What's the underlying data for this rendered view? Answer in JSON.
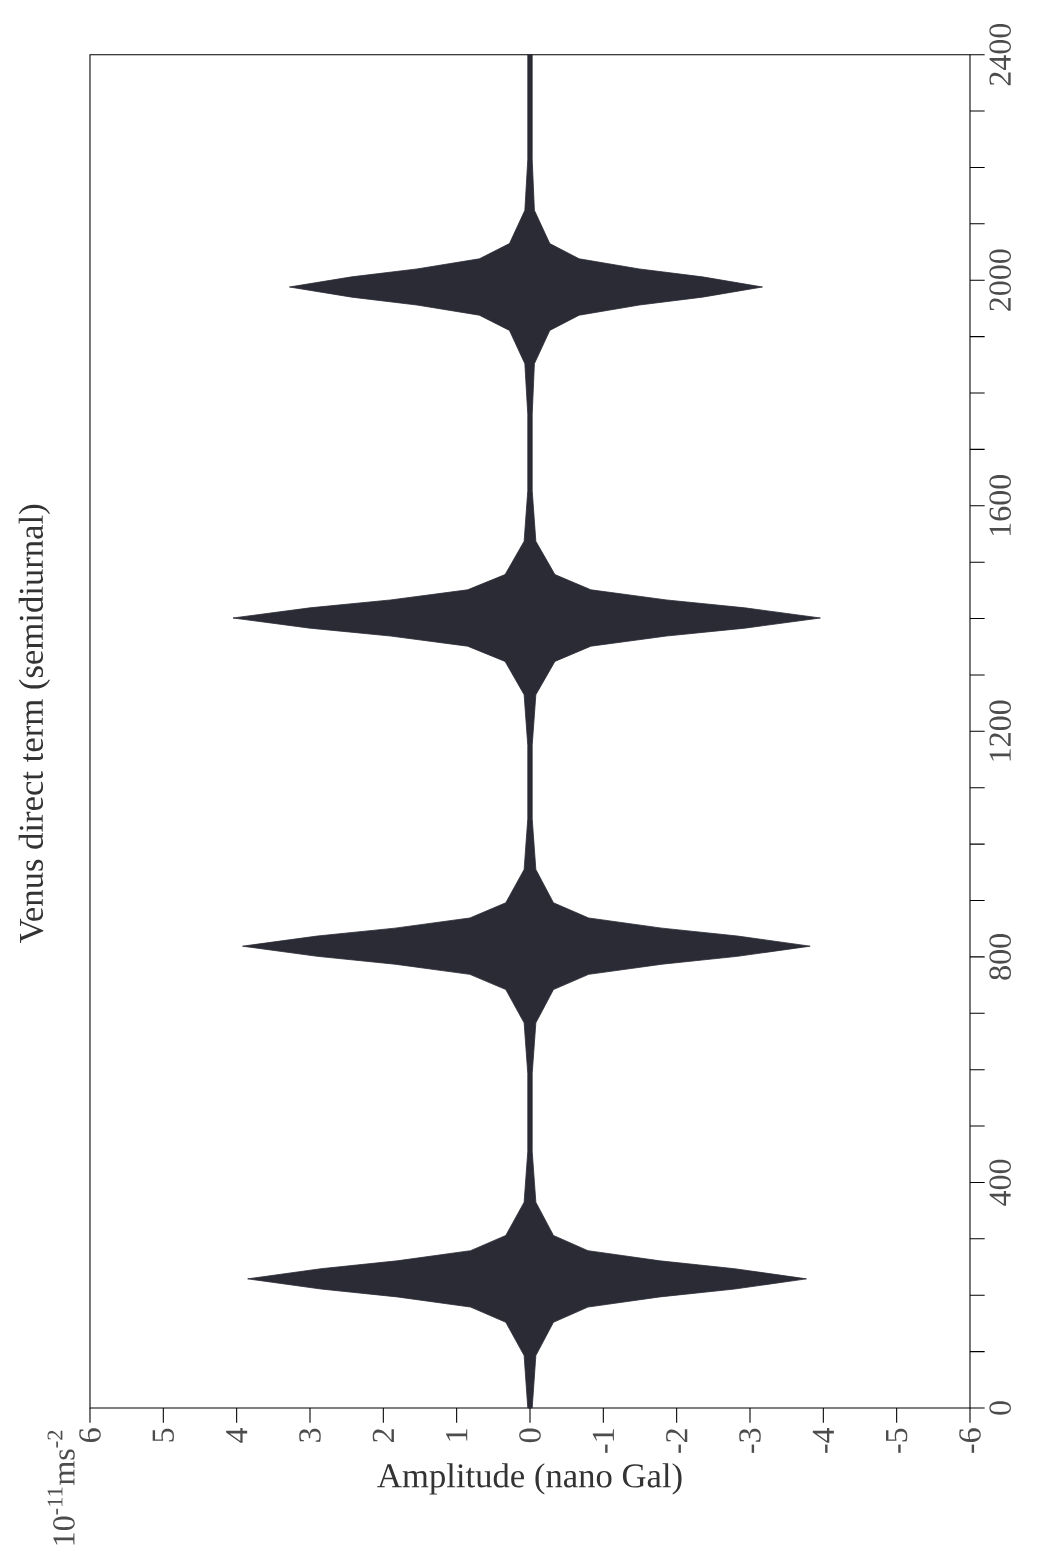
{
  "chart_data": {
    "type": "area",
    "orientation": "horizontal",
    "title": "Venus direct term (semidiurnal)",
    "xlabel": "Amplitude (nano Gal)",
    "annotations": [
      "10$^{-11}$ms$^{-2}$"
    ],
    "xlim": [
      6,
      -6
    ],
    "ylim": [
      0,
      2400
    ],
    "xticks": [
      -6,
      -5,
      -4,
      -3,
      -2,
      -1,
      0,
      1,
      2,
      3,
      4,
      5,
      6
    ],
    "yticks": [
      0,
      {
        "value": 100,
        "label": null
      },
      {
        "value": 200,
        "label": null
      },
      {
        "value": 300,
        "label": null
      },
      400,
      {
        "value": 500,
        "label": null
      },
      {
        "value": 600,
        "label": null
      },
      {
        "value": 700,
        "label": null
      },
      800,
      {
        "value": 900,
        "label": null
      },
      {
        "value": 1000,
        "label": null
      },
      {
        "value": 1100,
        "label": null
      },
      1200,
      {
        "value": 1300,
        "label": null
      },
      {
        "value": 1400,
        "label": null
      },
      {
        "value": 1500,
        "label": null
      },
      1600,
      {
        "value": 1700,
        "label": null
      },
      {
        "value": 1800,
        "label": null
      },
      {
        "value": 1900,
        "label": null
      },
      2000,
      {
        "value": 2100,
        "label": null
      },
      {
        "value": 2200,
        "label": null
      },
      {
        "value": 2300,
        "label": null
      },
      2400
    ],
    "x": [
      0,
      93,
      152,
      179,
      197,
      211,
      229,
      247,
      261,
      279,
      306,
      365,
      455,
      593,
      683,
      742,
      769,
      787,
      801,
      819,
      837,
      851,
      869,
      896,
      955,
      1045,
      1175,
      1265,
      1324,
      1351,
      1369,
      1383,
      1401,
      1419,
      1433,
      1451,
      1478,
      1537,
      1627,
      1762,
      1852,
      1911,
      1938,
      1956,
      1970,
      1988,
      2006,
      2020,
      2038,
      2065,
      2124,
      2214,
      2400
    ],
    "series": [
      {
        "color": "#2b2b36",
        "values": [
          0.03,
          0.08,
          0.33,
          0.81,
          1.81,
          2.85,
          3.85,
          2.85,
          1.81,
          0.81,
          0.33,
          0.08,
          0.03,
          0.03,
          0.08,
          0.33,
          0.82,
          1.84,
          2.9,
          3.92,
          2.9,
          1.84,
          0.82,
          0.33,
          0.08,
          0.03,
          0.03,
          0.08,
          0.34,
          0.85,
          1.9,
          3.0,
          4.05,
          3.0,
          1.9,
          0.85,
          0.34,
          0.08,
          0.03,
          0.03,
          0.07,
          0.28,
          0.69,
          1.54,
          2.43,
          3.28,
          2.43,
          1.54,
          0.69,
          0.28,
          0.07,
          0.03,
          0.03
        ]
      },
      {
        "color": "#2b2b36",
        "values": [
          -0.03,
          -0.08,
          -0.32,
          -0.79,
          -1.77,
          -2.79,
          -3.77,
          -2.79,
          -1.77,
          -0.79,
          -0.32,
          -0.08,
          -0.03,
          -0.03,
          -0.08,
          -0.32,
          -0.8,
          -1.8,
          -2.83,
          -3.82,
          -2.83,
          -1.8,
          -0.8,
          -0.32,
          -0.08,
          -0.03,
          -0.03,
          -0.08,
          -0.34,
          -0.83,
          -1.86,
          -2.93,
          -3.96,
          -2.93,
          -1.86,
          -0.83,
          -0.34,
          -0.08,
          -0.03,
          -0.03,
          -0.06,
          -0.27,
          -0.67,
          -1.49,
          -2.35,
          -3.17,
          -2.35,
          -1.49,
          -0.67,
          -0.27,
          -0.06,
          -0.03,
          -0.03
        ]
      }
    ]
  }
}
